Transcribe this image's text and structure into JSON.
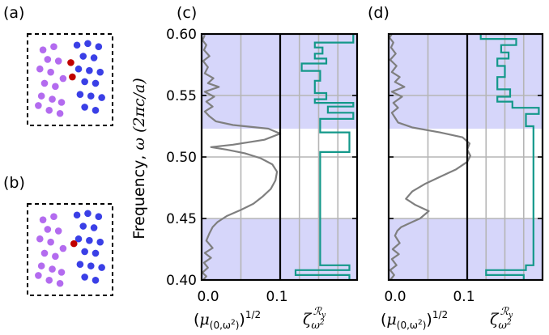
{
  "panel_labels": {
    "a": "(a)",
    "b": "(b)",
    "c": "(c)",
    "d": "(d)"
  },
  "colors": {
    "gap_shade": "#d6d6fa",
    "grid": "#b5b5b5",
    "dos_line": "#7f7f7f",
    "zeta_line": "#13988a",
    "purple_site": "#b36bef",
    "blue_site": "#3a3fe6",
    "red_site": "#c00000"
  },
  "axes": {
    "ylabel_prefix": "Frequency, ",
    "ylabel_omega": "ω",
    "ylabel_unit": "(2πc/a)",
    "dos_label_main": "(μ",
    "dos_label_sub": "(0,ω",
    "dos_label_sub2": "2",
    "dos_label_end": "))",
    "dos_label_sup": "1/2",
    "zeta_symbol": "ζ",
    "zeta_sub": "ω",
    "zeta_sub_sup": "2",
    "zeta_sup": "ℛ",
    "zeta_sup_sub": "y"
  },
  "chart_data": [
    {
      "type": "line",
      "panel": "(c)",
      "ylim": [
        0.4,
        0.6
      ],
      "yticks": [
        "0.40",
        "0.45",
        "0.50",
        "0.55",
        "0.60"
      ],
      "y_tick_values": [
        0.4,
        0.45,
        0.5,
        0.55,
        0.6
      ],
      "gap_bands": [
        [
          0.4,
          0.45
        ],
        [
          0.523,
          0.6
        ]
      ],
      "dos": {
        "xlim": [
          0,
          0.1
        ],
        "xticks": [
          "0.0",
          "0.1"
        ],
        "x_tick_values": [
          0.0,
          0.1
        ],
        "grid_x": [
          0.05
        ],
        "points": [
          [
            0.002,
            0.4
          ],
          [
            0.006,
            0.403
          ],
          [
            0.001,
            0.406
          ],
          [
            0.008,
            0.41
          ],
          [
            0.003,
            0.414
          ],
          [
            0.012,
            0.418
          ],
          [
            0.004,
            0.422
          ],
          [
            0.014,
            0.426
          ],
          [
            0.006,
            0.432
          ],
          [
            0.01,
            0.438
          ],
          [
            0.014,
            0.443
          ],
          [
            0.02,
            0.447
          ],
          [
            0.032,
            0.452
          ],
          [
            0.05,
            0.457
          ],
          [
            0.066,
            0.462
          ],
          [
            0.078,
            0.468
          ],
          [
            0.088,
            0.474
          ],
          [
            0.094,
            0.481
          ],
          [
            0.096,
            0.488
          ],
          [
            0.09,
            0.494
          ],
          [
            0.075,
            0.499
          ],
          [
            0.055,
            0.503
          ],
          [
            0.032,
            0.506
          ],
          [
            0.012,
            0.508
          ],
          [
            0.04,
            0.51
          ],
          [
            0.08,
            0.514
          ],
          [
            0.1,
            0.519
          ],
          [
            0.085,
            0.523
          ],
          [
            0.04,
            0.526
          ],
          [
            0.018,
            0.529
          ],
          [
            0.01,
            0.533
          ],
          [
            0.004,
            0.537
          ],
          [
            0.014,
            0.541
          ],
          [
            0.006,
            0.545
          ],
          [
            0.016,
            0.549
          ],
          [
            0.004,
            0.553
          ],
          [
            0.022,
            0.557
          ],
          [
            0.008,
            0.56
          ],
          [
            0.015,
            0.564
          ],
          [
            0.004,
            0.568
          ],
          [
            0.008,
            0.573
          ],
          [
            0.002,
            0.578
          ],
          [
            0.01,
            0.582
          ],
          [
            0.003,
            0.587
          ],
          [
            0.006,
            0.591
          ],
          [
            0.001,
            0.595
          ],
          [
            0.004,
            0.599
          ]
        ]
      },
      "zeta": {
        "points": [
          [
            0.9,
            0.4
          ],
          [
            0.9,
            0.404
          ],
          [
            0.2,
            0.404
          ],
          [
            0.2,
            0.408
          ],
          [
            0.9,
            0.408
          ],
          [
            0.9,
            0.412
          ],
          [
            0.52,
            0.412
          ],
          [
            0.52,
            0.504
          ],
          [
            0.9,
            0.504
          ],
          [
            0.9,
            0.52
          ],
          [
            0.52,
            0.52
          ],
          [
            0.52,
            0.531
          ],
          [
            0.95,
            0.531
          ],
          [
            0.95,
            0.536
          ],
          [
            0.62,
            0.536
          ],
          [
            0.62,
            0.541
          ],
          [
            0.95,
            0.541
          ],
          [
            0.95,
            0.544
          ],
          [
            0.45,
            0.544
          ],
          [
            0.45,
            0.547
          ],
          [
            0.6,
            0.547
          ],
          [
            0.6,
            0.552
          ],
          [
            0.45,
            0.552
          ],
          [
            0.45,
            0.562
          ],
          [
            0.52,
            0.562
          ],
          [
            0.52,
            0.57
          ],
          [
            0.28,
            0.57
          ],
          [
            0.28,
            0.576
          ],
          [
            0.6,
            0.576
          ],
          [
            0.6,
            0.58
          ],
          [
            0.45,
            0.58
          ],
          [
            0.45,
            0.584
          ],
          [
            0.55,
            0.584
          ],
          [
            0.55,
            0.589
          ],
          [
            0.45,
            0.589
          ],
          [
            0.45,
            0.593
          ],
          [
            0.95,
            0.593
          ],
          [
            0.95,
            0.6
          ]
        ]
      }
    },
    {
      "type": "line",
      "panel": "(d)",
      "ylim": [
        0.4,
        0.6
      ],
      "gap_bands": [
        [
          0.4,
          0.45
        ],
        [
          0.523,
          0.6
        ]
      ],
      "dos": {
        "xlim": [
          0,
          0.1
        ],
        "xticks": [
          "0.0",
          "0.1"
        ],
        "x_tick_values": [
          0.0,
          0.1
        ],
        "grid_x": [
          0.05
        ],
        "points": [
          [
            0.002,
            0.4
          ],
          [
            0.007,
            0.404
          ],
          [
            0.002,
            0.408
          ],
          [
            0.01,
            0.412
          ],
          [
            0.004,
            0.417
          ],
          [
            0.013,
            0.421
          ],
          [
            0.005,
            0.425
          ],
          [
            0.014,
            0.43
          ],
          [
            0.008,
            0.436
          ],
          [
            0.011,
            0.44
          ],
          [
            0.016,
            0.443
          ],
          [
            0.026,
            0.446
          ],
          [
            0.04,
            0.45
          ],
          [
            0.051,
            0.456
          ],
          [
            0.034,
            0.461
          ],
          [
            0.022,
            0.466
          ],
          [
            0.03,
            0.472
          ],
          [
            0.046,
            0.478
          ],
          [
            0.066,
            0.484
          ],
          [
            0.086,
            0.49
          ],
          [
            0.1,
            0.496
          ],
          [
            0.104,
            0.501
          ],
          [
            0.1,
            0.506
          ],
          [
            0.103,
            0.511
          ],
          [
            0.094,
            0.516
          ],
          [
            0.065,
            0.52
          ],
          [
            0.03,
            0.524
          ],
          [
            0.012,
            0.528
          ],
          [
            0.008,
            0.532
          ],
          [
            0.004,
            0.536
          ],
          [
            0.012,
            0.54
          ],
          [
            0.006,
            0.544
          ],
          [
            0.017,
            0.549
          ],
          [
            0.004,
            0.553
          ],
          [
            0.02,
            0.557
          ],
          [
            0.008,
            0.561
          ],
          [
            0.014,
            0.565
          ],
          [
            0.004,
            0.569
          ],
          [
            0.01,
            0.574
          ],
          [
            0.002,
            0.579
          ],
          [
            0.009,
            0.584
          ],
          [
            0.003,
            0.589
          ],
          [
            0.006,
            0.593
          ],
          [
            0.001,
            0.597
          ],
          [
            0.004,
            0.6
          ]
        ]
      },
      "zeta": {
        "points": [
          [
            0.75,
            0.4
          ],
          [
            0.75,
            0.404
          ],
          [
            0.25,
            0.404
          ],
          [
            0.25,
            0.408
          ],
          [
            0.78,
            0.408
          ],
          [
            0.78,
            0.412
          ],
          [
            0.88,
            0.412
          ],
          [
            0.88,
            0.525
          ],
          [
            0.78,
            0.525
          ],
          [
            0.78,
            0.535
          ],
          [
            0.95,
            0.535
          ],
          [
            0.95,
            0.54
          ],
          [
            0.6,
            0.54
          ],
          [
            0.6,
            0.545
          ],
          [
            0.4,
            0.545
          ],
          [
            0.4,
            0.549
          ],
          [
            0.57,
            0.549
          ],
          [
            0.57,
            0.555
          ],
          [
            0.4,
            0.555
          ],
          [
            0.4,
            0.565
          ],
          [
            0.5,
            0.565
          ],
          [
            0.5,
            0.574
          ],
          [
            0.4,
            0.574
          ],
          [
            0.4,
            0.58
          ],
          [
            0.55,
            0.58
          ],
          [
            0.55,
            0.585
          ],
          [
            0.45,
            0.585
          ],
          [
            0.45,
            0.591
          ],
          [
            0.65,
            0.591
          ],
          [
            0.65,
            0.596
          ],
          [
            0.18,
            0.596
          ],
          [
            0.18,
            0.6
          ]
        ]
      }
    }
  ],
  "lattice_a": {
    "purple": [
      [
        2,
        2
      ],
      [
        3.4,
        1.6
      ],
      [
        2.6,
        3.2
      ],
      [
        4,
        3.4
      ],
      [
        1.6,
        4.4
      ],
      [
        3,
        4.8
      ],
      [
        2.2,
        6.2
      ],
      [
        3.6,
        6.6
      ],
      [
        1.8,
        7.8
      ],
      [
        3.2,
        8.2
      ],
      [
        4.4,
        8.6
      ],
      [
        4.6,
        5.6
      ],
      [
        1.4,
        9
      ],
      [
        2.8,
        9.6
      ],
      [
        4.2,
        10
      ]
    ],
    "blue": [
      [
        6.4,
        1.4
      ],
      [
        7.8,
        1.2
      ],
      [
        9.2,
        1.6
      ],
      [
        7.2,
        2.8
      ],
      [
        8.6,
        3
      ],
      [
        6.6,
        4.4
      ],
      [
        8,
        4.6
      ],
      [
        9.4,
        4.8
      ],
      [
        7.4,
        6
      ],
      [
        8.8,
        6.2
      ],
      [
        6.8,
        7.6
      ],
      [
        8.2,
        7.8
      ],
      [
        9.6,
        8
      ],
      [
        7.4,
        9.2
      ],
      [
        8.8,
        9.6
      ]
    ],
    "red": [
      [
        5.6,
        3.6
      ],
      [
        5.8,
        5.4
      ]
    ]
  },
  "lattice_b": {
    "purple": [
      [
        2,
        2
      ],
      [
        3.4,
        1.6
      ],
      [
        2.6,
        3.2
      ],
      [
        4,
        3.4
      ],
      [
        1.6,
        4.4
      ],
      [
        3,
        4.8
      ],
      [
        2.2,
        6.2
      ],
      [
        3.6,
        6.6
      ],
      [
        1.8,
        7.8
      ],
      [
        3.2,
        8.2
      ],
      [
        4.4,
        8.6
      ],
      [
        4.6,
        5.6
      ],
      [
        1.4,
        9
      ],
      [
        2.8,
        9.6
      ],
      [
        4.2,
        10
      ]
    ],
    "blue": [
      [
        6.4,
        1.4
      ],
      [
        7.8,
        1.2
      ],
      [
        9.2,
        1.6
      ],
      [
        7.2,
        2.8
      ],
      [
        8.6,
        3
      ],
      [
        6.6,
        4.4
      ],
      [
        8,
        4.6
      ],
      [
        9.4,
        4.8
      ],
      [
        7.4,
        6
      ],
      [
        8.8,
        6.2
      ],
      [
        6.8,
        7.6
      ],
      [
        8.2,
        7.8
      ],
      [
        9.6,
        8
      ],
      [
        7.4,
        9.2
      ],
      [
        8.8,
        9.6
      ]
    ],
    "red": [
      [
        6.0,
        5.0
      ]
    ]
  }
}
